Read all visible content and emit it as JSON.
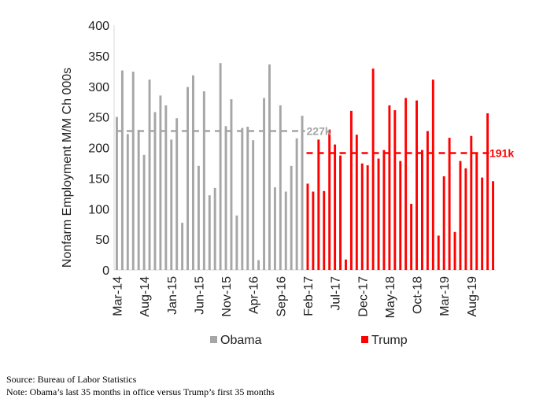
{
  "chart_data": {
    "type": "bar",
    "ylabel": "Nonfarm Employment M/M Ch 000s",
    "ylim": [
      0,
      400
    ],
    "yticks": [
      0,
      50,
      100,
      150,
      200,
      250,
      300,
      350,
      400
    ],
    "xtick_labels": [
      "Mar-14",
      "Aug-14",
      "Jan-15",
      "Jun-15",
      "Nov-15",
      "Apr-16",
      "Sep-16",
      "Feb-17",
      "Jul-17",
      "Dec-17",
      "May-18",
      "Oct-18",
      "Mar-19",
      "Aug-19"
    ],
    "xtick_every": 5,
    "legend": "bottom",
    "series": [
      {
        "name": "Obama",
        "color": "#a6a6a6",
        "values": [
          250,
          326,
          222,
          324,
          229,
          188,
          311,
          258,
          285,
          269,
          213,
          248,
          77,
          299,
          318,
          170,
          292,
          122,
          134,
          338,
          235,
          279,
          89,
          232,
          234,
          212,
          16,
          281,
          336,
          135,
          269,
          128,
          170,
          215,
          252
        ],
        "average": 227,
        "average_label": "227k"
      },
      {
        "name": "Trump",
        "color": "#ff0000",
        "values": [
          141,
          128,
          213,
          129,
          229,
          205,
          187,
          17,
          260,
          221,
          174,
          171,
          329,
          182,
          196,
          269,
          261,
          178,
          281,
          108,
          277,
          196,
          227,
          311,
          56,
          153,
          216,
          62,
          178,
          166,
          219,
          191,
          151,
          256,
          145
        ],
        "average": 191,
        "average_label": "191k"
      }
    ]
  },
  "notes": {
    "source": "Source: Bureau of Labor Statistics",
    "note": "Note: Obama’s last 35 months in office versus Trump’s first 35 months"
  }
}
